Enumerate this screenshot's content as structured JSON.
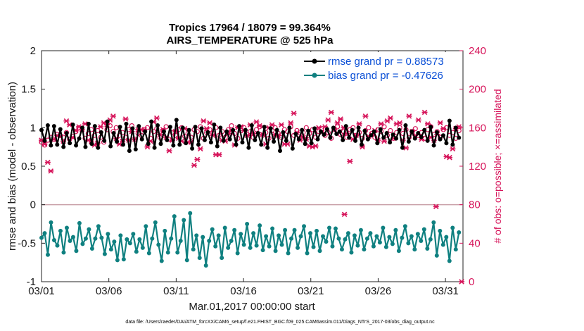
{
  "chart_data": {
    "type": "line",
    "title": "Tropics 17964 / 18079 = 99.364%",
    "subtitle": "AIRS_TEMPERATURE @ 525 hPa",
    "xlabel": "Mar.01,2017 00:00:00 start",
    "ylabel": "rmse and bias (model - observation)",
    "ylabel_right": "# of obs: o=possible; ×=assimilated",
    "ylim": [
      -1,
      2
    ],
    "ylim_right": [
      0,
      240
    ],
    "xlim": [
      0,
      31.3
    ],
    "x_ticks": [
      0,
      5,
      10,
      15,
      20,
      25,
      30
    ],
    "x_tick_labels": [
      "03/01",
      "03/06",
      "03/11",
      "03/16",
      "03/21",
      "03/26",
      "03/31"
    ],
    "y_ticks": [
      -1,
      -0.5,
      0,
      0.5,
      1,
      1.5,
      2
    ],
    "y_tick_labels": [
      "-1",
      "-0.5",
      "0",
      "0.5",
      "1",
      "1.5",
      "2"
    ],
    "y_ticks_right": [
      0,
      40,
      80,
      120,
      160,
      200,
      240
    ],
    "y_tick_labels_right": [
      "0",
      "40",
      "80",
      "120",
      "160",
      "200",
      "240"
    ],
    "zero_line": 0,
    "legend_position": "top-right",
    "series": [
      {
        "name": "rmse grand pr = 0.88573",
        "color": "#000000",
        "axis": "left",
        "values": [
          0.97,
          0.83,
          1.03,
          0.77,
          1.02,
          0.78,
          0.98,
          0.75,
          0.93,
          0.8,
          1.04,
          0.77,
          0.86,
          1.0,
          0.75,
          1.05,
          0.79,
          1.02,
          0.74,
          0.94,
          0.83,
          1.08,
          0.76,
          0.93,
          0.82,
          1.01,
          0.78,
          1.05,
          0.7,
          0.99,
          0.72,
          1.02,
          0.85,
          0.95,
          0.79,
          1.08,
          0.74,
          1.03,
          0.79,
          0.95,
          0.84,
          1.01,
          0.77,
          1.1,
          0.78,
          1.0,
          0.8,
          0.97,
          0.73,
          1.01,
          0.78,
          0.99,
          0.84,
          0.94,
          0.81,
          1.04,
          0.76,
          1.0,
          0.83,
          0.95,
          0.85,
          0.97,
          0.78,
          1.02,
          0.81,
          0.97,
          0.74,
          1.03,
          0.84,
          0.93,
          0.78,
          1.01,
          0.74,
          0.99,
          0.82,
          0.97,
          0.7,
          0.94,
          0.83,
          1.0,
          0.73,
          0.92,
          0.85,
          0.97,
          0.79,
          0.96,
          0.8,
          0.99,
          0.85,
          0.95,
          0.91,
          0.98,
          0.87,
          1.0,
          0.92,
          0.95,
          0.84,
          1.02,
          0.87,
          0.97,
          0.83,
          1.0,
          0.78,
          0.96,
          0.85,
          0.9,
          0.95,
          0.8,
          0.98,
          0.87,
          0.93,
          0.81,
          0.91,
          0.86,
          0.97,
          0.74,
          1.03,
          0.82,
          0.95,
          0.86,
          0.93,
          0.88,
          0.97,
          0.83,
          1.01,
          0.77,
          0.94,
          0.85,
          0.9,
          0.8,
          1.09,
          0.78,
          1.0,
          0.87
        ]
      },
      {
        "name": "bias grand pr = -0.47626",
        "color": "#0f8080",
        "axis": "left",
        "values": [
          -0.43,
          -0.37,
          -0.65,
          -0.23,
          -0.46,
          -0.53,
          -0.34,
          -0.62,
          -0.3,
          -0.47,
          -0.42,
          -0.6,
          -0.24,
          -0.51,
          -0.44,
          -0.32,
          -0.57,
          -0.44,
          -0.28,
          -0.43,
          -0.64,
          -0.38,
          -0.58,
          -0.48,
          -0.72,
          -0.4,
          -0.71,
          -0.45,
          -0.5,
          -0.38,
          -0.61,
          -0.45,
          -0.56,
          -0.28,
          -0.63,
          -0.44,
          -0.23,
          -0.52,
          -0.73,
          -0.34,
          -0.62,
          -0.44,
          -0.15,
          -0.62,
          -0.47,
          -0.2,
          -0.72,
          -0.11,
          -0.58,
          -0.4,
          -0.69,
          -0.42,
          -0.79,
          -0.47,
          -0.32,
          -0.54,
          -0.4,
          -0.69,
          -0.3,
          -0.56,
          -0.47,
          -0.33,
          -0.63,
          -0.38,
          -0.52,
          -0.25,
          -0.56,
          -0.37,
          -0.53,
          -0.27,
          -0.59,
          -0.41,
          -0.54,
          -0.31,
          -0.6,
          -0.4,
          -0.52,
          -0.33,
          -0.63,
          -0.44,
          -0.33,
          -0.56,
          -0.41,
          -0.28,
          -0.63,
          -0.37,
          -0.55,
          -0.34,
          -0.6,
          -0.41,
          -0.48,
          -0.3,
          -0.54,
          -0.31,
          -0.44,
          -0.58,
          -0.45,
          -0.37,
          -0.62,
          -0.4,
          -0.53,
          -0.33,
          -0.58,
          -0.44,
          -0.37,
          -0.54,
          -0.41,
          -0.49,
          -0.3,
          -0.55,
          -0.42,
          -0.51,
          -0.33,
          -0.6,
          -0.43,
          -0.28,
          -0.5,
          -0.41,
          -0.58,
          -0.38,
          -0.47,
          -0.32,
          -0.57,
          -0.45,
          -0.23,
          -0.66,
          -0.34,
          -0.52,
          -0.42,
          -0.73,
          -0.3,
          -0.58,
          -0.36
        ]
      },
      {
        "name": "obs possible",
        "color": "#d6145a",
        "axis": "right",
        "marker": "circle",
        "values": [
          145,
          142,
          147,
          150,
          148,
          153,
          152,
          150,
          155,
          148,
          151,
          156,
          160,
          158,
          149,
          154,
          158,
          152,
          157,
          150,
          145,
          158,
          162,
          156,
          160,
          152,
          155,
          150,
          158,
          162,
          148,
          154,
          152,
          158,
          160,
          149,
          156,
          159,
          150,
          157,
          161,
          148,
          155,
          152,
          158,
          160,
          151,
          154,
          150,
          158,
          156,
          161,
          149,
          155,
          158,
          154,
          160,
          152,
          156,
          150,
          158,
          162,
          154,
          149,
          157,
          160,
          153,
          156,
          150,
          158,
          161,
          152,
          155,
          149,
          157,
          160,
          154,
          150,
          158,
          156,
          161,
          152,
          157,
          149,
          155,
          160,
          154,
          158,
          150,
          156,
          159,
          152,
          155,
          149,
          158,
          161,
          153,
          156,
          150,
          158,
          160,
          152,
          155,
          149,
          157,
          160,
          154,
          150,
          158,
          156,
          161,
          152,
          157,
          149,
          155,
          160,
          154,
          158,
          150,
          156,
          159,
          152,
          155,
          149,
          158,
          161,
          153,
          156,
          150,
          158,
          160,
          152,
          155,
          149,
          157
        ]
      },
      {
        "name": "obs assimilated",
        "color": "#d6145a",
        "axis": "right",
        "marker": "x",
        "values": [
          147,
          143,
          124,
          115,
          148,
          152,
          151,
          146,
          167,
          163,
          150,
          157,
          161,
          158,
          164,
          147,
          146,
          142,
          144,
          161,
          165,
          163,
          168,
          172,
          149,
          143,
          146,
          169,
          147,
          156,
          148,
          158,
          158,
          158,
          140,
          146,
          166,
          170,
          153,
          158,
          150,
          136,
          147,
          156,
          149,
          146,
          159,
          145,
          145,
          121,
          127,
          138,
          167,
          159,
          165,
          152,
          132,
          132,
          147,
          146,
          154,
          157,
          142,
          160,
          161,
          157,
          152,
          163,
          154,
          166,
          162,
          153,
          143,
          160,
          163,
          153,
          152,
          163,
          143,
          143,
          165,
          175,
          155,
          147,
          150,
          148,
          141,
          140,
          141,
          160,
          155,
          161,
          168,
          176,
          158,
          165,
          169,
          160,
          154,
          125,
          148,
          152,
          164,
          140,
          172,
          151,
          153,
          157,
          147,
          164,
          146,
          167,
          170,
          149,
          164,
          165,
          147,
          139,
          172,
          156,
          152,
          168,
          148,
          176,
          164,
          150,
          147,
          153,
          165,
          159,
          130,
          129,
          138,
          159,
          161
        ]
      }
    ],
    "annotation_outliers_right": [
      {
        "x": 22.5,
        "value": 70
      },
      {
        "x": 29.3,
        "value": 78
      },
      {
        "x": 31.2,
        "value": 0
      }
    ]
  },
  "footnote": "data file: /Users/raeder/DAI/ATM_forcXX/CAM6_setup/f.e21.FHIST_BGC.f09_025.CAM6assim.011/Diags_NTrS_2017-03/obs_diag_output.nc"
}
